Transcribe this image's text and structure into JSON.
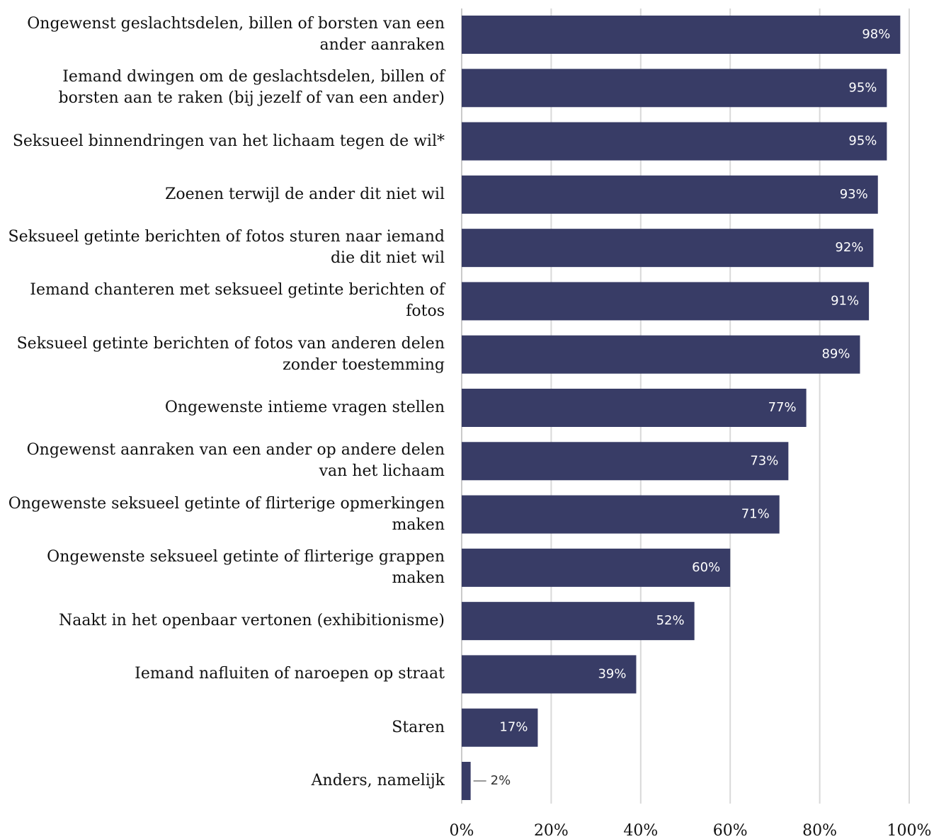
{
  "chart_data": {
    "type": "bar",
    "orientation": "horizontal",
    "categories": [
      "Ongewenst geslachtsdelen, billen of borsten van een ander aanraken",
      "Iemand dwingen om de geslachtsdelen, billen of borsten aan te raken (bij jezelf of van een ander)",
      "Seksueel binnendringen van het lichaam tegen de wil*",
      "Zoenen terwijl de ander dit niet wil",
      "Seksueel getinte berichten of fotos sturen naar iemand die dit niet wil",
      "Iemand chanteren met seksueel getinte berichten of fotos",
      "Seksueel getinte berichten of fotos van anderen delen zonder toestemming",
      "Ongewenste intieme vragen stellen",
      "Ongewenst aanraken van een ander op andere delen van het lichaam",
      "Ongewenste seksueel getinte of flirterige opmerkingen maken",
      "Ongewenste seksueel getinte of flirterige grappen maken",
      "Naakt in het openbaar vertonen (exhibitionisme)",
      "Iemand nafluiten of naroepen op straat",
      "Staren",
      "Anders, namelijk"
    ],
    "values": [
      98,
      95,
      95,
      93,
      92,
      91,
      89,
      77,
      73,
      71,
      60,
      52,
      39,
      17,
      2
    ],
    "value_labels": [
      "98%",
      "95%",
      "95%",
      "93%",
      "92%",
      "91%",
      "89%",
      "77%",
      "73%",
      "71%",
      "60%",
      "52%",
      "39%",
      "17%",
      "2%"
    ],
    "color": "#383c66",
    "xlim": [
      0,
      100
    ],
    "xticks": [
      {
        "value": 0,
        "label": "0%"
      },
      {
        "value": 20,
        "label": "20%"
      },
      {
        "value": 40,
        "label": "40%"
      },
      {
        "value": 60,
        "label": "60%"
      },
      {
        "value": 80,
        "label": "80%"
      },
      {
        "value": 100,
        "label": "100%"
      }
    ],
    "grid": true
  }
}
